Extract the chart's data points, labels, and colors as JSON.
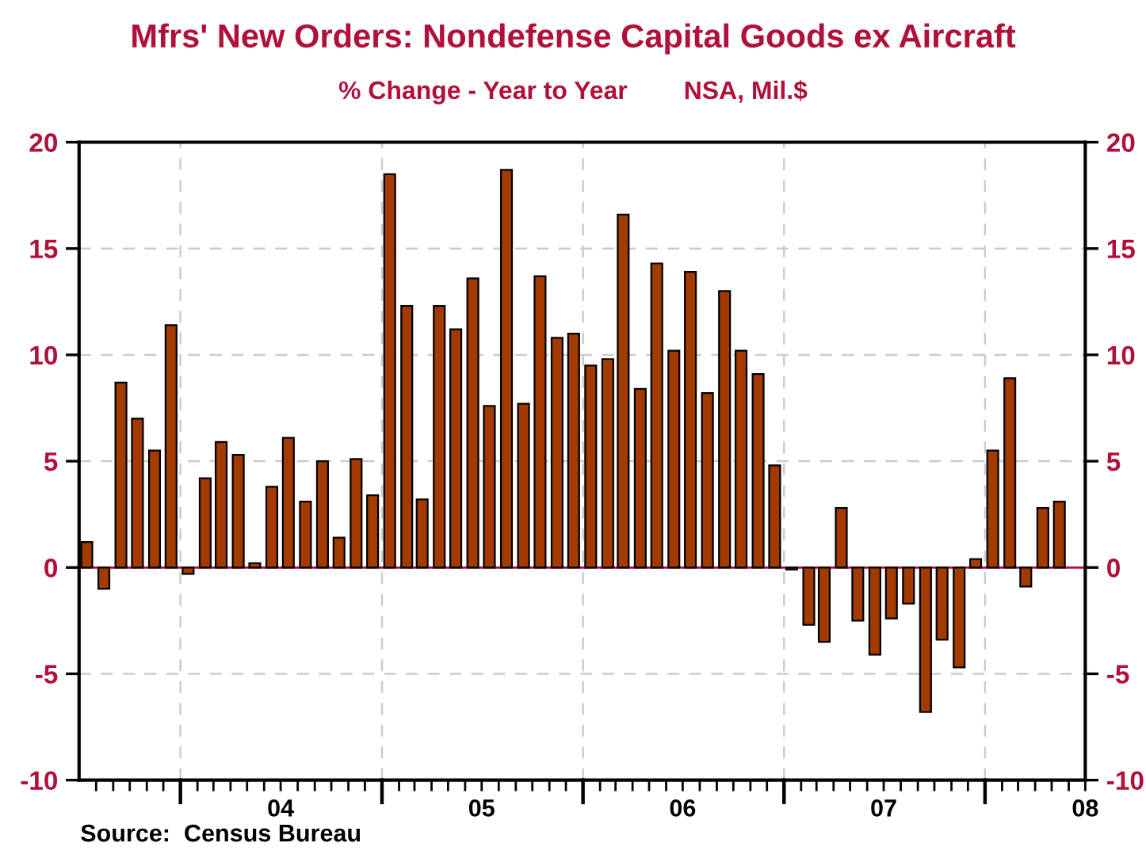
{
  "chart_data": {
    "type": "bar",
    "title": "Mfrs' New Orders: Nondefense Capital Goods ex Aircraft",
    "subtitle": "% Change - Year to Year        NSA, Mil.$",
    "annotations": [
      "Source:  Census Bureau"
    ],
    "x": [
      "2003-07-15",
      "2003-08-15",
      "2003-09-15",
      "2003-10-15",
      "2003-11-15",
      "2003-12-15",
      "2004-01-15",
      "2004-02-15",
      "2004-03-15",
      "2004-04-15",
      "2004-05-15",
      "2004-06-15",
      "2004-07-15",
      "2004-08-15",
      "2004-09-15",
      "2004-10-15",
      "2004-11-15",
      "2004-12-15",
      "2005-01-15",
      "2005-02-15",
      "2005-03-15",
      "2005-04-15",
      "2005-05-15",
      "2005-06-15",
      "2005-07-15",
      "2005-08-15",
      "2005-09-15",
      "2005-10-15",
      "2005-11-15",
      "2005-12-15",
      "2006-01-15",
      "2006-02-15",
      "2006-03-15",
      "2006-04-15",
      "2006-05-15",
      "2006-06-15",
      "2006-07-15",
      "2006-08-15",
      "2006-09-15",
      "2006-10-15",
      "2006-11-15",
      "2006-12-15",
      "2007-01-15",
      "2007-02-15",
      "2007-03-15",
      "2007-04-15",
      "2007-05-15",
      "2007-06-15",
      "2007-07-15",
      "2007-08-15",
      "2007-09-15",
      "2007-10-15",
      "2007-11-15",
      "2007-12-15",
      "2008-01-15",
      "2008-02-15",
      "2008-03-15",
      "2008-04-15",
      "2008-05-15"
    ],
    "series": [
      {
        "color": "#a33a00",
        "values": [
          1.2,
          -1.0,
          8.7,
          7.0,
          5.5,
          11.4,
          -0.3,
          4.2,
          5.9,
          5.3,
          0.2,
          3.8,
          6.1,
          3.1,
          5.0,
          1.4,
          5.1,
          3.4,
          18.5,
          12.3,
          3.2,
          12.3,
          11.2,
          13.6,
          7.6,
          18.7,
          7.7,
          13.7,
          10.8,
          11.0,
          9.5,
          9.8,
          16.6,
          8.4,
          14.3,
          10.2,
          13.9,
          8.2,
          13.0,
          10.2,
          9.1,
          4.8,
          -0.1,
          -2.7,
          -3.5,
          2.8,
          -2.5,
          -4.1,
          -2.4,
          -1.7,
          -6.8,
          -3.4,
          -4.7,
          0.4,
          5.5,
          8.9,
          -0.9,
          2.8,
          3.1
        ]
      }
    ],
    "xlim": [
      "2003-07-01",
      "2008-07-01"
    ],
    "xticks": [
      {
        "value": "2003-08-01",
        "label": null
      },
      {
        "value": "2003-09-01",
        "label": null
      },
      {
        "value": "2003-10-01",
        "label": null
      },
      {
        "value": "2003-11-01",
        "label": null
      },
      {
        "value": "2003-12-01",
        "label": null
      },
      {
        "value": "2004-01-01",
        "label": null
      },
      {
        "value": "2004-02-01",
        "label": null
      },
      {
        "value": "2004-03-01",
        "label": null
      },
      {
        "value": "2004-04-01",
        "label": null
      },
      {
        "value": "2004-05-01",
        "label": null
      },
      {
        "value": "2004-06-01",
        "label": null
      },
      {
        "value": "2004-07-01",
        "label": "04"
      },
      {
        "value": "2004-08-01",
        "label": null
      },
      {
        "value": "2004-09-01",
        "label": null
      },
      {
        "value": "2004-10-01",
        "label": null
      },
      {
        "value": "2004-11-01",
        "label": null
      },
      {
        "value": "2004-12-01",
        "label": null
      },
      {
        "value": "2005-01-01",
        "label": null
      },
      {
        "value": "2005-02-01",
        "label": null
      },
      {
        "value": "2005-03-01",
        "label": null
      },
      {
        "value": "2005-04-01",
        "label": null
      },
      {
        "value": "2005-05-01",
        "label": null
      },
      {
        "value": "2005-06-01",
        "label": null
      },
      {
        "value": "2005-07-01",
        "label": "05"
      },
      {
        "value": "2005-08-01",
        "label": null
      },
      {
        "value": "2005-09-01",
        "label": null
      },
      {
        "value": "2005-10-01",
        "label": null
      },
      {
        "value": "2005-11-01",
        "label": null
      },
      {
        "value": "2005-12-01",
        "label": null
      },
      {
        "value": "2006-01-01",
        "label": null
      },
      {
        "value": "2006-02-01",
        "label": null
      },
      {
        "value": "2006-03-01",
        "label": null
      },
      {
        "value": "2006-04-01",
        "label": null
      },
      {
        "value": "2006-05-01",
        "label": null
      },
      {
        "value": "2006-06-01",
        "label": null
      },
      {
        "value": "2006-07-01",
        "label": "06"
      },
      {
        "value": "2006-08-01",
        "label": null
      },
      {
        "value": "2006-09-01",
        "label": null
      },
      {
        "value": "2006-10-01",
        "label": null
      },
      {
        "value": "2006-11-01",
        "label": null
      },
      {
        "value": "2006-12-01",
        "label": null
      },
      {
        "value": "2007-01-01",
        "label": null
      },
      {
        "value": "2007-02-01",
        "label": null
      },
      {
        "value": "2007-03-01",
        "label": null
      },
      {
        "value": "2007-04-01",
        "label": null
      },
      {
        "value": "2007-05-01",
        "label": null
      },
      {
        "value": "2007-06-01",
        "label": null
      },
      {
        "value": "2007-07-01",
        "label": "07"
      },
      {
        "value": "2007-08-01",
        "label": null
      },
      {
        "value": "2007-09-01",
        "label": null
      },
      {
        "value": "2007-10-01",
        "label": null
      },
      {
        "value": "2007-11-01",
        "label": null
      },
      {
        "value": "2007-12-01",
        "label": null
      },
      {
        "value": "2008-01-01",
        "label": null
      },
      {
        "value": "2008-02-01",
        "label": null
      },
      {
        "value": "2008-03-01",
        "label": null
      },
      {
        "value": "2008-04-01",
        "label": null
      },
      {
        "value": "2008-05-01",
        "label": null
      },
      {
        "value": "2008-06-01",
        "label": null
      },
      {
        "value": "2008-07-01",
        "label": "08"
      }
    ],
    "ylim": [
      -10,
      20
    ],
    "yticks": [
      -10,
      -5,
      0,
      5,
      10,
      15,
      20
    ],
    "y2lim": [
      -10,
      20
    ],
    "y2ticks": [
      -10,
      -5,
      0,
      5,
      10,
      15,
      20
    ],
    "ref_lines": [
      {
        "axis": "y",
        "value": 0,
        "label": null,
        "color": "#b0103a"
      }
    ],
    "grid": true,
    "legend": false
  }
}
